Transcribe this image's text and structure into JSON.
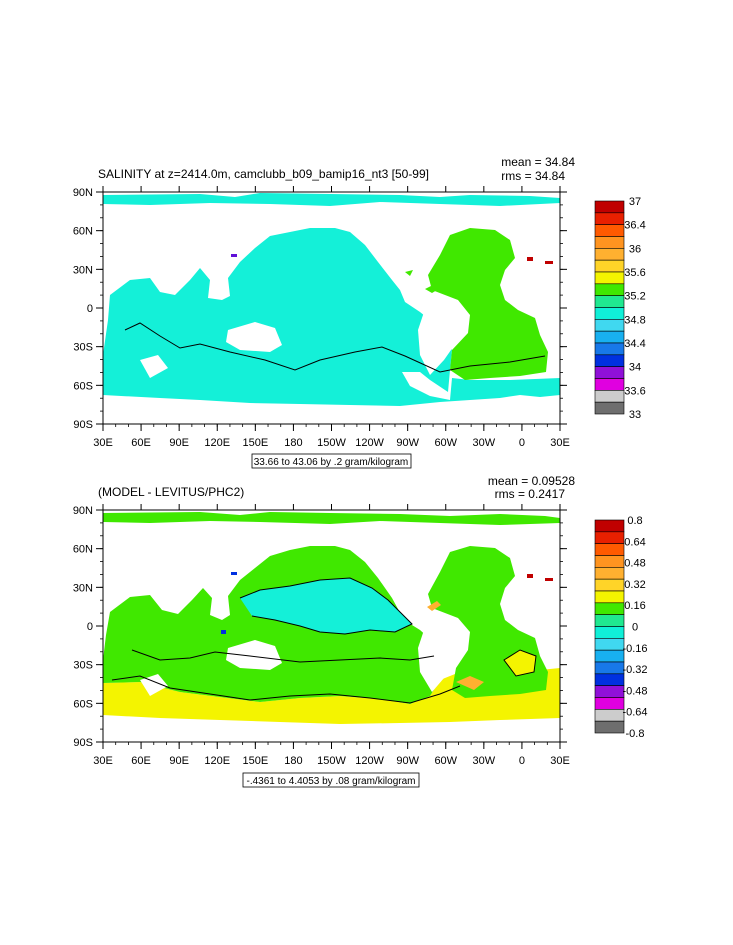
{
  "panels": [
    {
      "title": "SALINITY at z=2414.0m, camclubb_b09_bamip16_nt3 [50-99]",
      "mean_label": "mean = 34.84",
      "rms_label": "rms = 34.84",
      "contour_info": "33.66 to 43.06 by .2 gram/kilogram",
      "colorbar": {
        "labels": [
          "37",
          "36.4",
          "36",
          "35.6",
          "35.2",
          "34.8",
          "34.4",
          "34",
          "33.6",
          "33"
        ],
        "colors": [
          "#c00000",
          "#e82000",
          "#ff5a00",
          "#ff9420",
          "#ffb030",
          "#ffd428",
          "#f4f400",
          "#40e800",
          "#20e890",
          "#10f0d8",
          "#40d8f0",
          "#18b0f0",
          "#1878e8",
          "#0030e0",
          "#9010d8",
          "#e000e0",
          "#cccccc",
          "#6e6e6e"
        ]
      }
    },
    {
      "title": "(MODEL - LEVITUS/PHC2)",
      "mean_label": "mean = 0.09528",
      "rms_label": "rms = 0.2417",
      "contour_info": "-.4361 to 4.4053 by .08 gram/kilogram",
      "colorbar": {
        "labels": [
          "0.8",
          "0.64",
          "0.48",
          "0.32",
          "0.16",
          "0",
          "-0.16",
          "-0.32",
          "-0.48",
          "-0.64",
          "-0.8"
        ],
        "colors": [
          "#c00000",
          "#e82000",
          "#ff5a00",
          "#ff9420",
          "#ffb030",
          "#ffd428",
          "#f4f400",
          "#40e800",
          "#20e890",
          "#10f0d8",
          "#40d8f0",
          "#18b0f0",
          "#1878e8",
          "#0030e0",
          "#9010d8",
          "#e000e0",
          "#cccccc",
          "#6e6e6e"
        ]
      }
    }
  ],
  "x_ticks": [
    "30E",
    "60E",
    "90E",
    "120E",
    "150E",
    "180",
    "150W",
    "120W",
    "90W",
    "60W",
    "30W",
    "0",
    "30E"
  ],
  "y_ticks": [
    "90N",
    "60N",
    "30N",
    "0",
    "30S",
    "60S",
    "90S"
  ],
  "colors": {
    "cyan_region": "#14f0d8",
    "green_region": "#40e800",
    "yellow_region": "#f4f400",
    "land": "#ffffff"
  }
}
